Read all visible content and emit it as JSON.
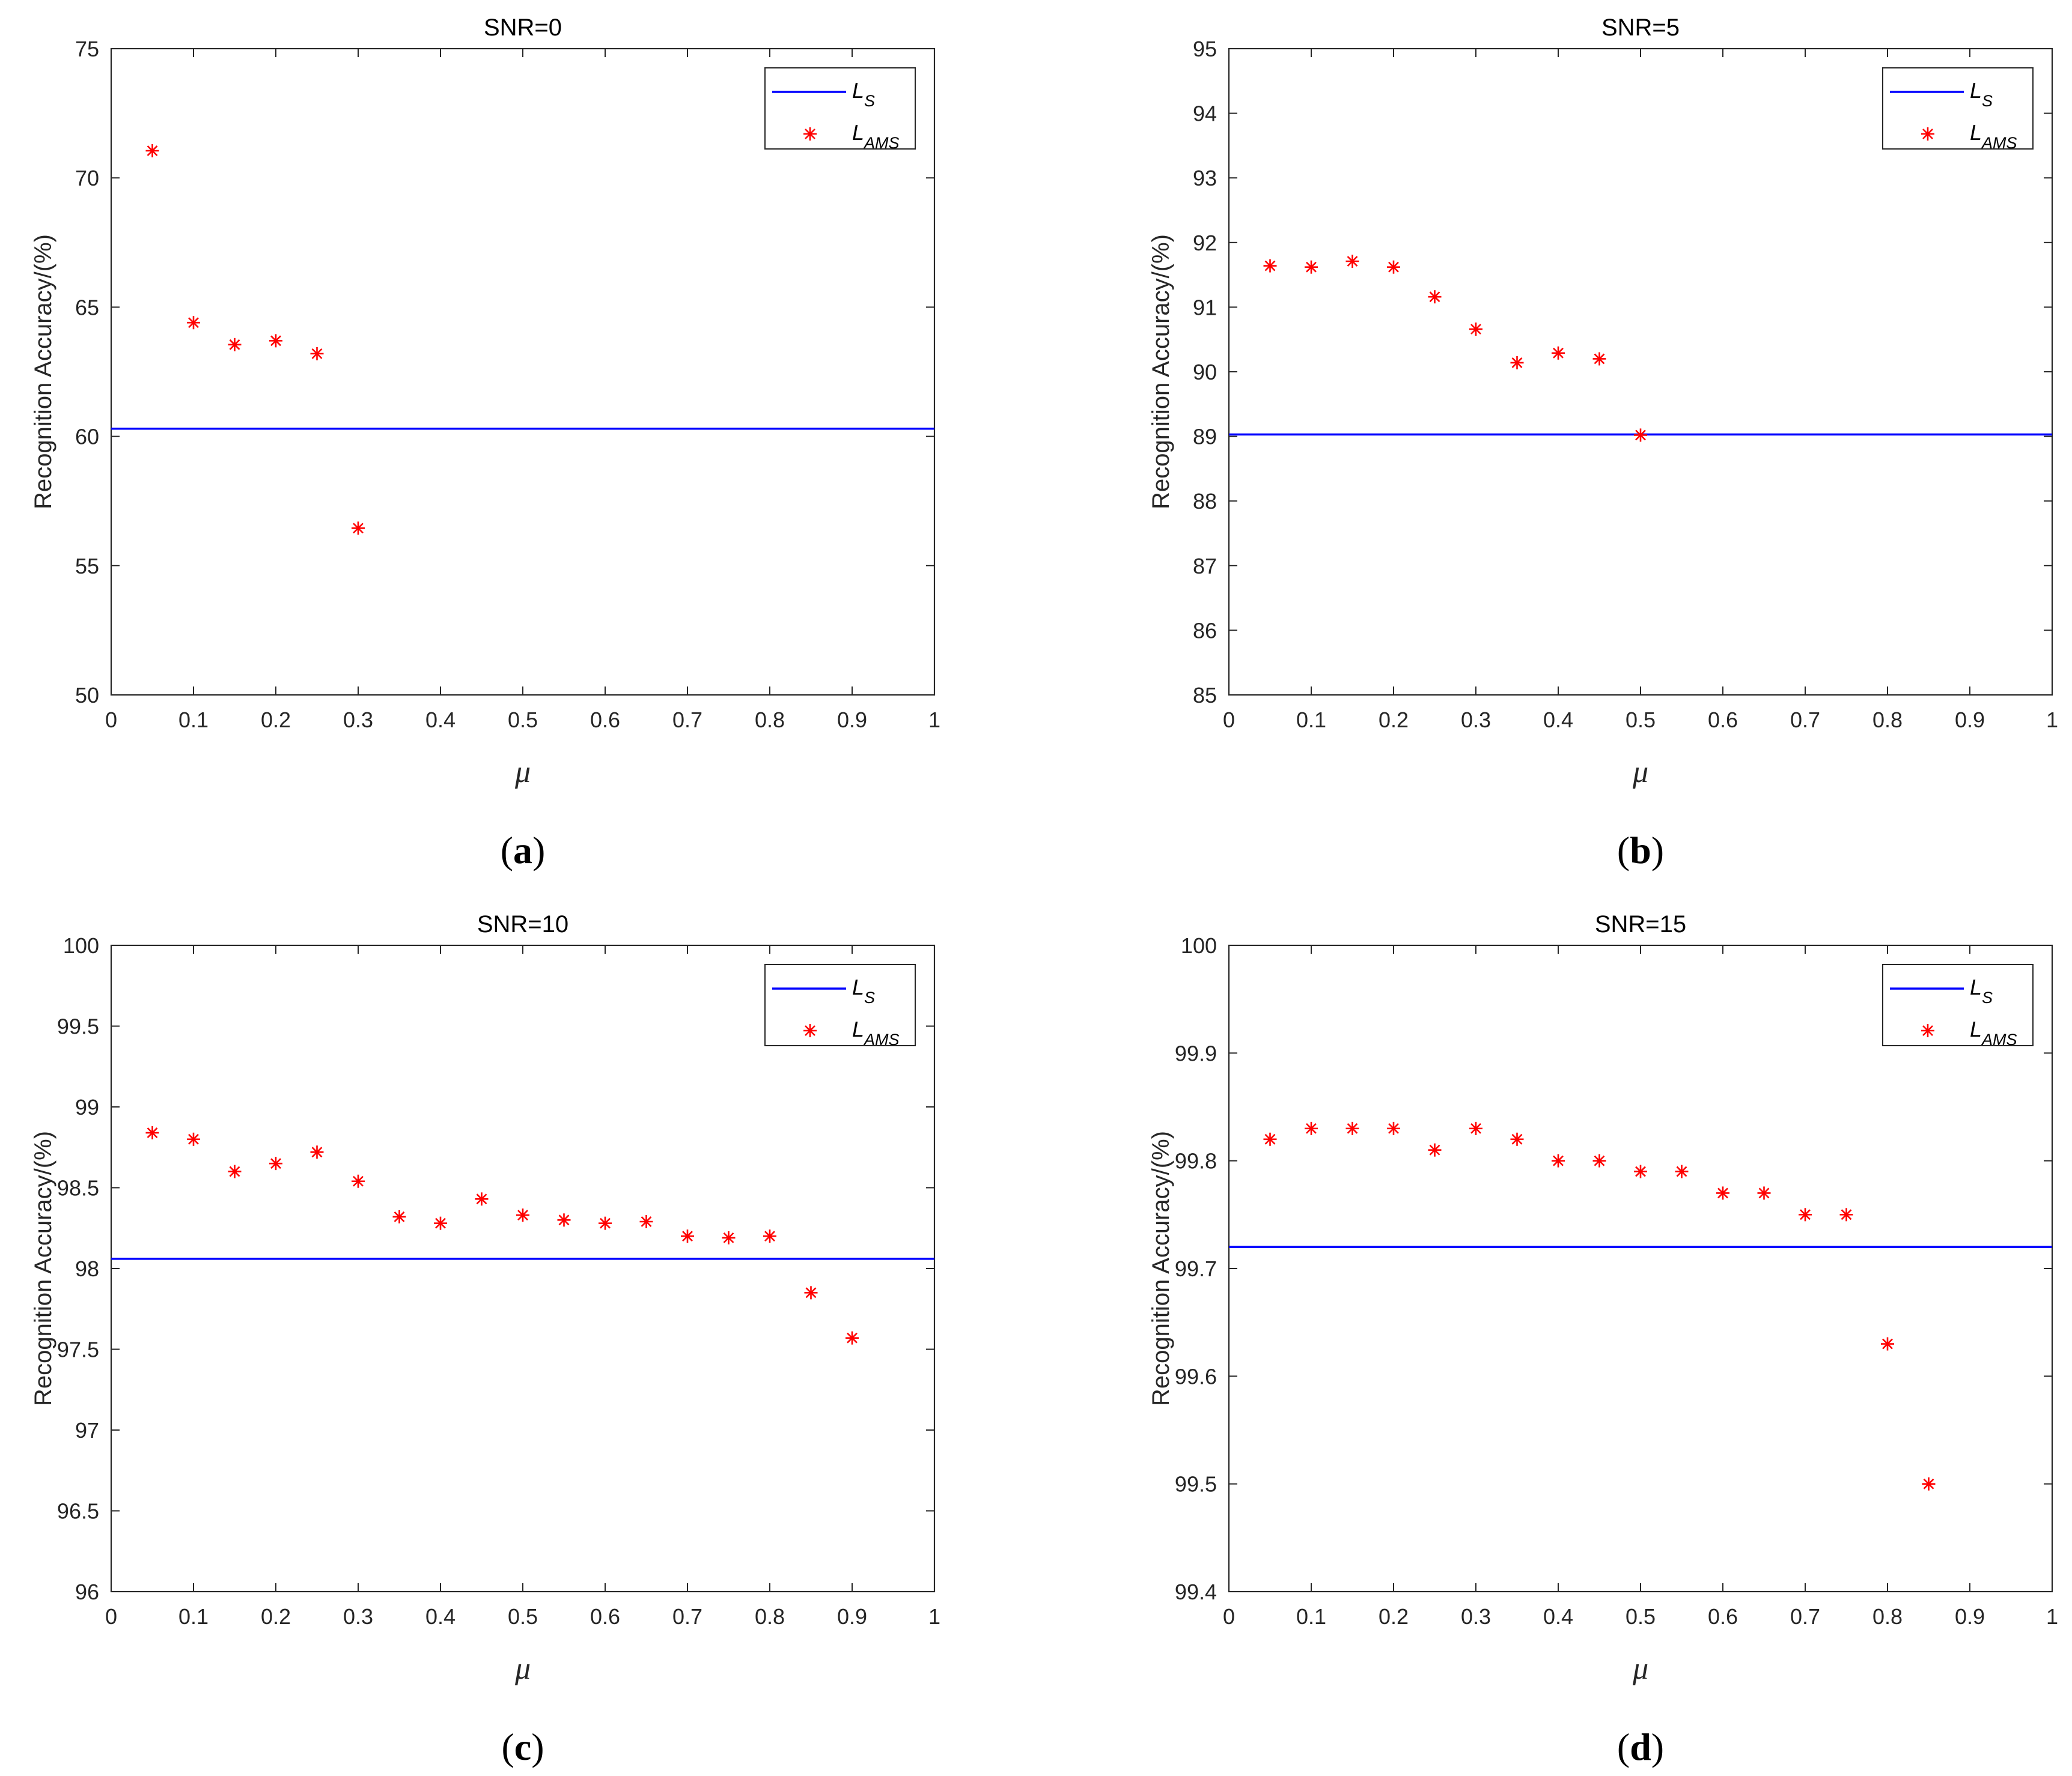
{
  "figure_colors": {
    "baseline": "#0000ff",
    "marker": "#ff0000",
    "axis": "#262626"
  },
  "chart_data": [
    {
      "type": "scatter",
      "panel": "a",
      "title": "SNR=0",
      "xlabel": "μ",
      "ylabel": "Recognition Accuracy/(%)",
      "caption": "(a)",
      "caption_parts": [
        "(",
        "a",
        ")"
      ],
      "xlim": [
        0,
        1
      ],
      "ylim": [
        50,
        75
      ],
      "xticks": [
        0,
        0.1,
        0.2,
        0.3,
        0.4,
        0.5,
        0.6,
        0.7,
        0.8,
        0.9,
        1
      ],
      "xtick_labels": [
        "0",
        "0.1",
        "0.2",
        "0.3",
        "0.4",
        "0.5",
        "0.6",
        "0.7",
        "0.8",
        "0.9",
        "1"
      ],
      "yticks": [
        50,
        55,
        60,
        65,
        70,
        75
      ],
      "ytick_labels": [
        "50",
        "55",
        "60",
        "65",
        "70",
        "75"
      ],
      "legend": {
        "position": "top-right",
        "entries": [
          {
            "name": "L",
            "sub": "S",
            "style": "line"
          },
          {
            "name": "L",
            "sub": "AMS",
            "style": "star"
          }
        ]
      },
      "baseline_LS": 60.3,
      "series": [
        {
          "name": "L_AMS",
          "x": [
            0.05,
            0.1,
            0.15,
            0.2,
            0.25,
            0.3
          ],
          "y": [
            71.05,
            64.4,
            63.55,
            63.7,
            63.2,
            56.45
          ]
        }
      ]
    },
    {
      "type": "scatter",
      "panel": "b",
      "title": "SNR=5",
      "xlabel": "μ",
      "ylabel": "Recognition Accuracy/(%)",
      "caption": "(b)",
      "caption_parts": [
        "(",
        "b",
        ")"
      ],
      "xlim": [
        0,
        1
      ],
      "ylim": [
        85,
        95
      ],
      "xticks": [
        0,
        0.1,
        0.2,
        0.3,
        0.4,
        0.5,
        0.6,
        0.7,
        0.8,
        0.9,
        1
      ],
      "xtick_labels": [
        "0",
        "0.1",
        "0.2",
        "0.3",
        "0.4",
        "0.5",
        "0.6",
        "0.7",
        "0.8",
        "0.9",
        "1"
      ],
      "yticks": [
        85,
        86,
        87,
        88,
        89,
        90,
        91,
        92,
        93,
        94,
        95
      ],
      "ytick_labels": [
        "85",
        "86",
        "87",
        "88",
        "89",
        "90",
        "91",
        "92",
        "93",
        "94",
        "95"
      ],
      "legend": {
        "position": "top-right",
        "entries": [
          {
            "name": "L",
            "sub": "S",
            "style": "line"
          },
          {
            "name": "L",
            "sub": "AMS",
            "style": "star"
          }
        ]
      },
      "baseline_LS": 89.03,
      "series": [
        {
          "name": "L_AMS",
          "x": [
            0.05,
            0.1,
            0.15,
            0.2,
            0.25,
            0.3,
            0.35,
            0.4,
            0.45,
            0.5
          ],
          "y": [
            91.64,
            91.62,
            91.71,
            91.62,
            91.16,
            90.66,
            90.14,
            90.29,
            90.2,
            89.02
          ]
        }
      ]
    },
    {
      "type": "scatter",
      "panel": "c",
      "title": "SNR=10",
      "xlabel": "μ",
      "ylabel": "Recognition Accuracy/(%)",
      "caption": "(c)",
      "caption_parts": [
        "(",
        "c",
        ")"
      ],
      "xlim": [
        0,
        1
      ],
      "ylim": [
        96,
        100
      ],
      "xticks": [
        0,
        0.1,
        0.2,
        0.3,
        0.4,
        0.5,
        0.6,
        0.7,
        0.8,
        0.9,
        1
      ],
      "xtick_labels": [
        "0",
        "0.1",
        "0.2",
        "0.3",
        "0.4",
        "0.5",
        "0.6",
        "0.7",
        "0.8",
        "0.9",
        "1"
      ],
      "yticks": [
        96,
        96.5,
        97,
        97.5,
        98,
        98.5,
        99,
        99.5,
        100
      ],
      "ytick_labels": [
        "96",
        "96.5",
        "97",
        "97.5",
        "98",
        "98.5",
        "99",
        "99.5",
        "100"
      ],
      "legend": {
        "position": "top-right",
        "entries": [
          {
            "name": "L",
            "sub": "S",
            "style": "line"
          },
          {
            "name": "L",
            "sub": "AMS",
            "style": "star"
          }
        ]
      },
      "baseline_LS": 98.06,
      "series": [
        {
          "name": "L_AMS",
          "x": [
            0.05,
            0.1,
            0.15,
            0.2,
            0.25,
            0.3,
            0.35,
            0.4,
            0.45,
            0.5,
            0.55,
            0.6,
            0.65,
            0.7,
            0.75,
            0.8,
            0.85,
            0.9
          ],
          "y": [
            98.84,
            98.8,
            98.6,
            98.65,
            98.72,
            98.54,
            98.32,
            98.28,
            98.43,
            98.33,
            98.3,
            98.28,
            98.29,
            98.2,
            98.19,
            98.2,
            97.85,
            97.57
          ]
        }
      ]
    },
    {
      "type": "scatter",
      "panel": "d",
      "title": "SNR=15",
      "xlabel": "μ",
      "ylabel": "Recognition Accuracy/(%)",
      "caption": "(d)",
      "caption_parts": [
        "(",
        "d",
        ")"
      ],
      "xlim": [
        0,
        1
      ],
      "ylim": [
        99.4,
        100
      ],
      "xticks": [
        0,
        0.1,
        0.2,
        0.3,
        0.4,
        0.5,
        0.6,
        0.7,
        0.8,
        0.9,
        1
      ],
      "xtick_labels": [
        "0",
        "0.1",
        "0.2",
        "0.3",
        "0.4",
        "0.5",
        "0.6",
        "0.7",
        "0.8",
        "0.9",
        "1"
      ],
      "yticks": [
        99.4,
        99.5,
        99.6,
        99.7,
        99.8,
        99.9,
        100
      ],
      "ytick_labels": [
        "99.4",
        "99.5",
        "99.6",
        "99.7",
        "99.8",
        "99.9",
        "100"
      ],
      "legend": {
        "position": "top-right",
        "entries": [
          {
            "name": "L",
            "sub": "S",
            "style": "line"
          },
          {
            "name": "L",
            "sub": "AMS",
            "style": "star"
          }
        ]
      },
      "baseline_LS": 99.72,
      "series": [
        {
          "name": "L_AMS",
          "x": [
            0.05,
            0.1,
            0.15,
            0.2,
            0.25,
            0.3,
            0.35,
            0.4,
            0.45,
            0.5,
            0.55,
            0.6,
            0.65,
            0.7,
            0.75,
            0.8,
            0.85
          ],
          "y": [
            99.82,
            99.83,
            99.83,
            99.83,
            99.81,
            99.83,
            99.82,
            99.8,
            99.8,
            99.79,
            99.79,
            99.77,
            99.77,
            99.75,
            99.75,
            99.63,
            99.5
          ]
        }
      ]
    }
  ]
}
